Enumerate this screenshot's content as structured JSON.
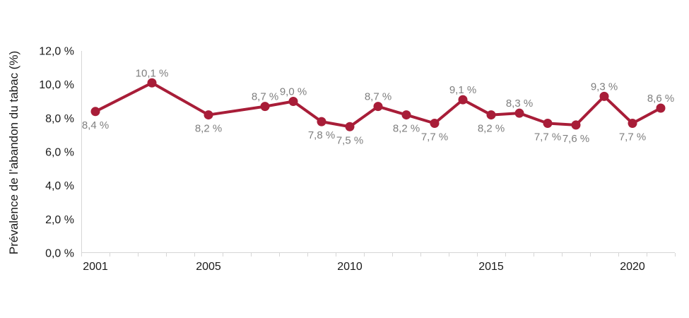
{
  "chart_data": {
    "type": "line",
    "title": "",
    "xlabel": "",
    "ylabel": "Prévalence de l’abandon du tabac (%)",
    "ylim": [
      0,
      12
    ],
    "x_range": [
      2000.5,
      2021.5
    ],
    "grid": false,
    "legend": "none",
    "yticks": [
      {
        "value": 0,
        "label": "0,0 %"
      },
      {
        "value": 2,
        "label": "2,0 %"
      },
      {
        "value": 4,
        "label": "4,0 %"
      },
      {
        "value": 6,
        "label": "6,0 %"
      },
      {
        "value": 8,
        "label": "8,0 %"
      },
      {
        "value": 10,
        "label": "10,0 %"
      },
      {
        "value": 12,
        "label": "12,0 %"
      }
    ],
    "xticks": [
      {
        "value": 2001,
        "label": "2001"
      },
      {
        "value": 2005,
        "label": "2005"
      },
      {
        "value": 2010,
        "label": "2010"
      },
      {
        "value": 2015,
        "label": "2015"
      },
      {
        "value": 2020,
        "label": "2020"
      }
    ],
    "points": [
      {
        "year": 2001,
        "value": 8.4,
        "label": "8,4 %",
        "label_position": "below"
      },
      {
        "year": 2003,
        "value": 10.1,
        "label": "10,1 %",
        "label_position": "above"
      },
      {
        "year": 2005,
        "value": 8.2,
        "label": "8,2 %",
        "label_position": "below"
      },
      {
        "year": 2007,
        "value": 8.7,
        "label": "8,7 %",
        "label_position": "above"
      },
      {
        "year": 2008,
        "value": 9.0,
        "label": "9,0 %",
        "label_position": "above"
      },
      {
        "year": 2009,
        "value": 7.8,
        "label": "7,8 %",
        "label_position": "below"
      },
      {
        "year": 2010,
        "value": 7.5,
        "label": "7,5 %",
        "label_position": "below"
      },
      {
        "year": 2011,
        "value": 8.7,
        "label": "8,7 %",
        "label_position": "above"
      },
      {
        "year": 2012,
        "value": 8.2,
        "label": "8,2 %",
        "label_position": "below"
      },
      {
        "year": 2013,
        "value": 7.7,
        "label": "7,7 %",
        "label_position": "below"
      },
      {
        "year": 2014,
        "value": 9.1,
        "label": "9,1 %",
        "label_position": "above"
      },
      {
        "year": 2015,
        "value": 8.2,
        "label": "8,2 %",
        "label_position": "below"
      },
      {
        "year": 2016,
        "value": 8.3,
        "label": "8,3 %",
        "label_position": "above"
      },
      {
        "year": 2017,
        "value": 7.7,
        "label": "7,7 %",
        "label_position": "below"
      },
      {
        "year": 2018,
        "value": 7.6,
        "label": "7,6 %",
        "label_position": "below"
      },
      {
        "year": 2019,
        "value": 9.3,
        "label": "9,3 %",
        "label_position": "above"
      },
      {
        "year": 2020,
        "value": 7.7,
        "label": "7,7 %",
        "label_position": "below"
      },
      {
        "year": 2021,
        "value": 8.6,
        "label": "8,6 %",
        "label_position": "above"
      }
    ],
    "colors": {
      "line": "#A81D38",
      "marker": "#A81D38",
      "data_label": "#7F7F7F",
      "axis": "#D6D6D6",
      "tick_label": "#1A1A1A",
      "background": "#FFFFFF"
    }
  }
}
